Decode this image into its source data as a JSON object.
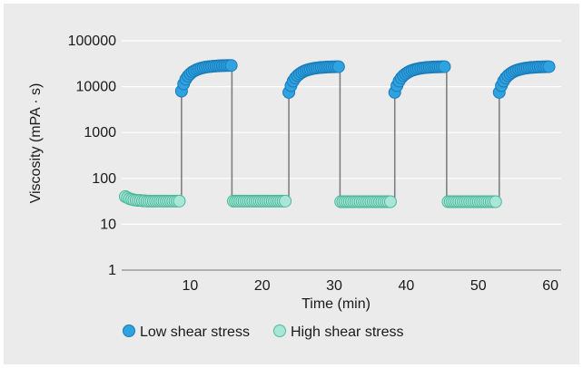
{
  "chart_data": {
    "type": "scatter",
    "title": "",
    "xlabel": "Time (min)",
    "ylabel": "Viscosity (mPA · s)",
    "x_scale": "linear",
    "y_scale": "log",
    "xlim": [
      0.5,
      61.5
    ],
    "ylim": [
      1,
      100000
    ],
    "x_ticks": [
      10,
      20,
      30,
      40,
      50,
      60
    ],
    "x_tick_labels": [
      "10",
      "20",
      "30",
      "40",
      "50",
      "60"
    ],
    "y_ticks": [
      1,
      10,
      100,
      1000,
      10000,
      100000
    ],
    "y_tick_labels": [
      "1",
      "10",
      "100",
      "1000",
      "10000",
      "100000"
    ],
    "grid": "horizontal",
    "legend_position": "bottom",
    "colors": {
      "low": "#2ea3e0",
      "low_edge": "#1a7ab8",
      "high": "#a8e6d8",
      "high_edge": "#4db89a",
      "connector": "#7f7f7f",
      "grid": "#ffffff",
      "background": "#ebebeb"
    },
    "series": [
      {
        "name": "Low shear stress",
        "color": "#2ea3e0",
        "segments": [
          {
            "x": [
              8.8,
              9.1,
              9.4,
              9.7,
              10.0,
              10.3,
              10.6,
              10.9,
              11.2,
              11.5,
              11.8,
              12.1,
              12.4,
              12.7,
              13.0,
              13.3,
              13.6,
              13.9,
              14.2,
              14.5,
              14.8,
              15.1,
              15.4,
              15.7
            ],
            "y": [
              8000,
              11500,
              14500,
              17000,
              19000,
              20800,
              22200,
              23400,
              24400,
              25200,
              25900,
              26500,
              27000,
              27400,
              27700,
              28000,
              28200,
              28400,
              28600,
              28700,
              28800,
              28900,
              29000,
              29000
            ]
          },
          {
            "x": [
              23.7,
              24.0,
              24.3,
              24.6,
              24.9,
              25.2,
              25.5,
              25.8,
              26.1,
              26.4,
              26.7,
              27.0,
              27.3,
              27.6,
              27.9,
              28.2,
              28.5,
              28.8,
              29.1,
              29.4,
              29.7,
              30.0,
              30.3,
              30.6
            ],
            "y": [
              7500,
              10500,
              13200,
              15500,
              17400,
              19000,
              20400,
              21600,
              22600,
              23400,
              24100,
              24700,
              25200,
              25600,
              25900,
              26200,
              26400,
              26600,
              26800,
              26900,
              27000,
              27100,
              27200,
              27200
            ]
          },
          {
            "x": [
              38.4,
              38.7,
              39.0,
              39.3,
              39.6,
              39.9,
              40.2,
              40.5,
              40.8,
              41.1,
              41.4,
              41.7,
              42.0,
              42.3,
              42.6,
              42.9,
              43.2,
              43.5,
              43.8,
              44.1,
              44.4,
              44.7,
              45.0,
              45.3
            ],
            "y": [
              7500,
              10500,
              13200,
              15500,
              17400,
              19000,
              20400,
              21600,
              22600,
              23400,
              24100,
              24700,
              25200,
              25600,
              25900,
              26200,
              26400,
              26600,
              26800,
              26900,
              27000,
              27100,
              27200,
              27200
            ]
          },
          {
            "x": [
              52.9,
              53.2,
              53.5,
              53.8,
              54.1,
              54.4,
              54.7,
              55.0,
              55.3,
              55.6,
              55.9,
              56.2,
              56.5,
              56.8,
              57.1,
              57.4,
              57.7,
              58.0,
              58.3,
              58.6,
              58.9,
              59.2,
              59.5,
              59.8
            ],
            "y": [
              7500,
              10500,
              13200,
              15500,
              17400,
              19000,
              20400,
              21600,
              22600,
              23400,
              24100,
              24700,
              25200,
              25600,
              25900,
              26200,
              26400,
              26600,
              26800,
              26900,
              27000,
              27100,
              27200,
              27200
            ]
          }
        ]
      },
      {
        "name": "High shear stress",
        "color": "#a8e6d8",
        "segments": [
          {
            "x": [
              1.0,
              1.3,
              1.6,
              1.9,
              2.2,
              2.5,
              2.8,
              3.1,
              3.4,
              3.7,
              4.0,
              4.3,
              4.6,
              4.9,
              5.2,
              5.5,
              5.8,
              6.1,
              6.4,
              6.7,
              7.0,
              7.3,
              7.6,
              7.9,
              8.2,
              8.5
            ],
            "y": [
              40,
              38,
              36,
              35,
              34,
              33.5,
              33,
              33,
              32.5,
              32.5,
              32,
              32,
              32,
              32,
              32,
              32,
              32,
              32,
              32,
              32,
              32,
              32,
              32,
              32,
              32,
              32
            ]
          },
          {
            "x": [
              16.0,
              16.3,
              16.6,
              16.9,
              17.2,
              17.5,
              17.8,
              18.1,
              18.4,
              18.7,
              19.0,
              19.3,
              19.6,
              19.9,
              20.2,
              20.5,
              20.8,
              21.1,
              21.4,
              21.7,
              22.0,
              22.3,
              22.6,
              22.9,
              23.2
            ],
            "y": [
              32,
              32,
              32,
              32,
              32,
              32,
              32,
              32,
              32,
              32,
              32,
              32,
              32,
              32,
              32,
              32,
              32,
              32,
              32,
              32,
              32,
              32,
              32,
              32,
              32
            ]
          },
          {
            "x": [
              30.9,
              31.2,
              31.5,
              31.8,
              32.1,
              32.4,
              32.7,
              33.0,
              33.3,
              33.6,
              33.9,
              34.2,
              34.5,
              34.8,
              35.1,
              35.4,
              35.7,
              36.0,
              36.3,
              36.6,
              36.9,
              37.2,
              37.5,
              37.8
            ],
            "y": [
              31,
              31,
              31,
              31,
              31,
              31,
              31,
              31,
              31,
              31,
              31,
              31,
              31,
              31,
              31,
              31,
              31,
              31,
              31,
              31,
              31,
              31,
              31,
              31
            ]
          },
          {
            "x": [
              45.8,
              46.1,
              46.4,
              46.7,
              47.0,
              47.3,
              47.6,
              47.9,
              48.2,
              48.5,
              48.8,
              49.1,
              49.4,
              49.7,
              50.0,
              50.3,
              50.6,
              50.9,
              51.2,
              51.5,
              51.8,
              52.1,
              52.4
            ],
            "y": [
              31,
              31,
              31,
              31,
              31,
              31,
              31,
              31,
              31,
              31,
              31,
              31,
              31,
              31,
              31,
              31,
              31,
              31,
              31,
              31,
              31,
              31,
              31
            ]
          }
        ]
      }
    ],
    "connectors": [
      {
        "x": 8.8,
        "from": 32,
        "to": 8000
      },
      {
        "x": 15.8,
        "from": 29000,
        "to": 32
      },
      {
        "x": 23.7,
        "from": 32,
        "to": 7500
      },
      {
        "x": 30.8,
        "from": 27200,
        "to": 31
      },
      {
        "x": 38.4,
        "from": 31,
        "to": 7500
      },
      {
        "x": 45.6,
        "from": 27200,
        "to": 31
      },
      {
        "x": 52.9,
        "from": 31,
        "to": 7500
      }
    ]
  }
}
